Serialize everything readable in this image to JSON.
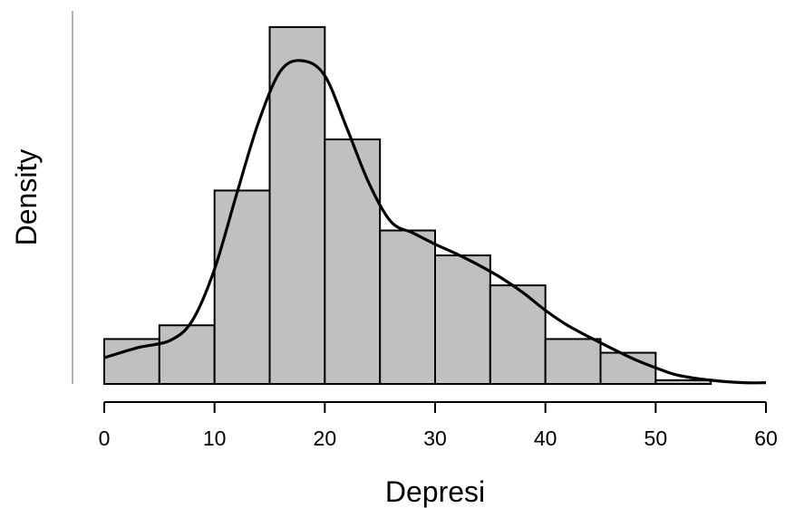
{
  "chart_data": {
    "type": "histogram",
    "xlabel": "Depresi",
    "ylabel": "Density",
    "xlim": [
      0,
      60
    ],
    "x_ticks": [
      "0",
      "10",
      "20",
      "30",
      "40",
      "50",
      "60"
    ],
    "y_ticks": [],
    "grid": false,
    "legend": "none",
    "bins": [
      {
        "x0": 0,
        "x1": 5,
        "density": 0.0036
      },
      {
        "x0": 5,
        "x1": 10,
        "density": 0.0047
      },
      {
        "x0": 10,
        "x1": 15,
        "density": 0.0155
      },
      {
        "x0": 15,
        "x1": 20,
        "density": 0.0286
      },
      {
        "x0": 20,
        "x1": 25,
        "density": 0.0196
      },
      {
        "x0": 25,
        "x1": 30,
        "density": 0.0123
      },
      {
        "x0": 30,
        "x1": 35,
        "density": 0.0103
      },
      {
        "x0": 35,
        "x1": 40,
        "density": 0.0079
      },
      {
        "x0": 40,
        "x1": 45,
        "density": 0.0036
      },
      {
        "x0": 45,
        "x1": 50,
        "density": 0.0025
      },
      {
        "x0": 50,
        "x1": 55,
        "density": 0.0003
      }
    ],
    "density_curve": {
      "x": [
        0,
        3,
        6,
        8,
        10,
        12,
        14,
        16,
        18,
        20,
        22,
        24,
        26,
        28,
        30,
        32,
        34,
        36,
        38,
        40,
        42,
        45,
        48,
        50,
        52,
        55,
        58,
        60
      ],
      "y": [
        0.0021,
        0.0029,
        0.0035,
        0.0051,
        0.0092,
        0.0152,
        0.021,
        0.0251,
        0.0259,
        0.0247,
        0.0205,
        0.0161,
        0.013,
        0.0121,
        0.0112,
        0.0104,
        0.0095,
        0.0085,
        0.0073,
        0.0059,
        0.0047,
        0.0033,
        0.002,
        0.0013,
        0.0007,
        0.0003,
        0.0001,
        0.0001
      ]
    },
    "colors": {
      "bar_fill": "#c0c0c0",
      "bar_stroke": "#000000",
      "curve": "#000000",
      "axis": "#000000",
      "y_axis_line": "#808080"
    }
  }
}
